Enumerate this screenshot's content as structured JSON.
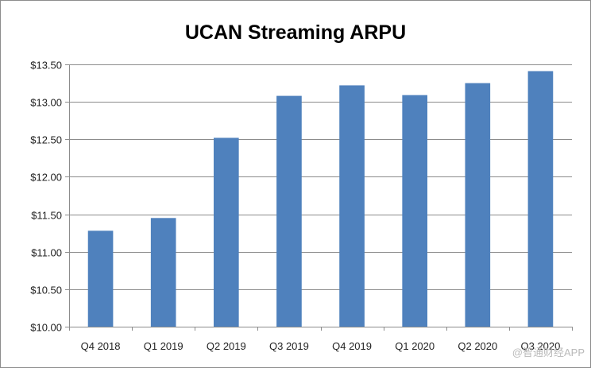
{
  "chart_data": {
    "type": "bar",
    "title": "UCAN Streaming ARPU",
    "xlabel": "",
    "ylabel": "",
    "categories": [
      "Q4 2018",
      "Q1 2019",
      "Q2 2019",
      "Q3 2019",
      "Q4 2019",
      "Q1 2020",
      "Q2 2020",
      "Q3 2020"
    ],
    "values": [
      11.28,
      11.45,
      12.52,
      13.08,
      13.22,
      13.09,
      13.25,
      13.41
    ],
    "ylim": [
      10.0,
      13.5
    ],
    "yticks": [
      10.0,
      10.5,
      11.0,
      11.5,
      12.0,
      12.5,
      13.0,
      13.5
    ],
    "ytick_labels": [
      "$10.00",
      "$10.50",
      "$11.00",
      "$11.50",
      "$12.00",
      "$12.50",
      "$13.00",
      "$13.50"
    ],
    "grid": true,
    "legend": "none",
    "bar_color": "#4f81bd",
    "grid_color": "#8c8c8c"
  },
  "watermark": {
    "text": "@智通财经APP"
  }
}
